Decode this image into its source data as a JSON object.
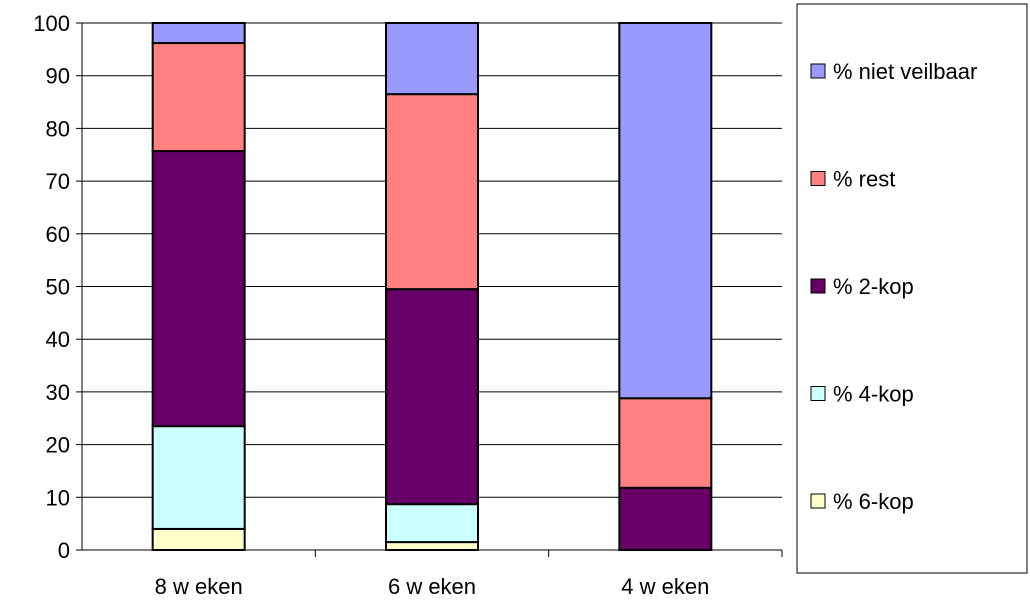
{
  "chart_data": {
    "type": "bar",
    "stacked": true,
    "categories": [
      "8 w eken",
      "6 w eken",
      "4 w eken"
    ],
    "series": [
      {
        "name": "% 6-kop",
        "color": "#ffffcc",
        "values": [
          4,
          1.5,
          0
        ]
      },
      {
        "name": "% 4-kop",
        "color": "#ccffff",
        "values": [
          19.5,
          7.2,
          0
        ]
      },
      {
        "name": "% 2-kop",
        "color": "#660066",
        "values": [
          52.2,
          40.8,
          11.8
        ]
      },
      {
        "name": "% rest",
        "color": "#ff8080",
        "values": [
          20.5,
          37,
          17
        ]
      },
      {
        "name": "% niet veilbaar",
        "color": "#9999ff",
        "values": [
          3.8,
          13.5,
          71.2
        ]
      }
    ],
    "ylim": [
      0,
      100
    ],
    "yticks": [
      "0",
      "10",
      "20",
      "30",
      "40",
      "50",
      "60",
      "70",
      "80",
      "90",
      "100"
    ],
    "grid": true,
    "legend_position": "right"
  }
}
